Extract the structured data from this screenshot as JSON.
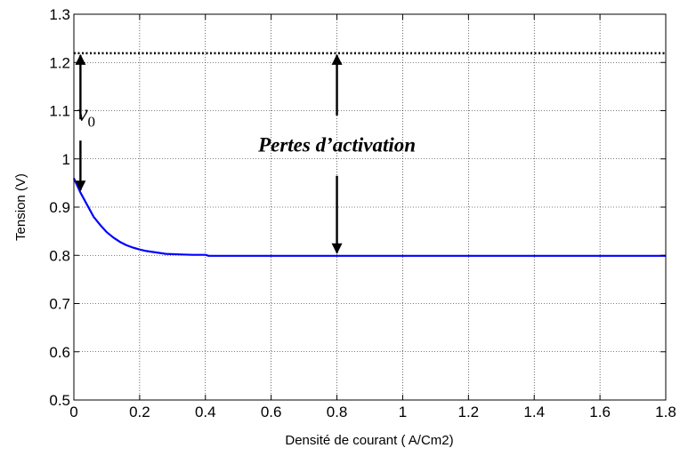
{
  "chart_data": {
    "type": "line",
    "title": "",
    "xlabel": "Densité de courant ( A/Cm2)",
    "ylabel": "Tension (V)",
    "xlim": [
      0,
      1.8
    ],
    "ylim": [
      0.5,
      1.3
    ],
    "x_ticks": [
      0,
      0.2,
      0.4,
      0.6,
      0.8,
      1,
      1.2,
      1.4,
      1.6,
      1.8
    ],
    "x_tick_labels": [
      "0",
      "0.2",
      "0.4",
      "0.6",
      "0.8",
      "1",
      "1.2",
      "1.4",
      "1.6",
      "1.8"
    ],
    "y_ticks": [
      0.5,
      0.6,
      0.7,
      0.8,
      0.9,
      1.0,
      1.1,
      1.2,
      1.3
    ],
    "y_tick_labels": [
      "0.5",
      "0.6",
      "0.7",
      "0.8",
      "0.9",
      "1",
      "1.1",
      "1.2",
      "1.3"
    ],
    "grid": true,
    "series": [
      {
        "color": "#0000ff",
        "style": "solid",
        "x": [
          0,
          0.02,
          0.04,
          0.06,
          0.08,
          0.1,
          0.12,
          0.14,
          0.16,
          0.18,
          0.2,
          0.22,
          0.25,
          0.28,
          0.32,
          0.36,
          0.4,
          0.41,
          0.5,
          0.8,
          1.2,
          1.8
        ],
        "y": [
          0.96,
          0.93,
          0.905,
          0.88,
          0.863,
          0.848,
          0.837,
          0.828,
          0.821,
          0.816,
          0.812,
          0.809,
          0.806,
          0.803,
          0.802,
          0.801,
          0.801,
          0.799,
          0.799,
          0.799,
          0.799,
          0.799
        ]
      },
      {
        "color": "#000000",
        "style": "dotted",
        "x": [
          0,
          1.8
        ],
        "y": [
          1.219,
          1.219
        ]
      }
    ],
    "annotations": [
      {
        "text": "Pertes d’activation",
        "x": 0.8,
        "y": 1.015
      },
      {
        "text": "v",
        "subscript": "0",
        "x": 0.02,
        "y": 1.08
      }
    ],
    "arrows": [
      {
        "x": 0.02,
        "from": 1.082,
        "to": 1.215
      },
      {
        "x": 0.02,
        "from": 1.038,
        "to": 0.935
      },
      {
        "x": 0.8,
        "from": 1.09,
        "to": 1.215
      },
      {
        "x": 0.8,
        "from": 0.965,
        "to": 0.805
      }
    ]
  }
}
